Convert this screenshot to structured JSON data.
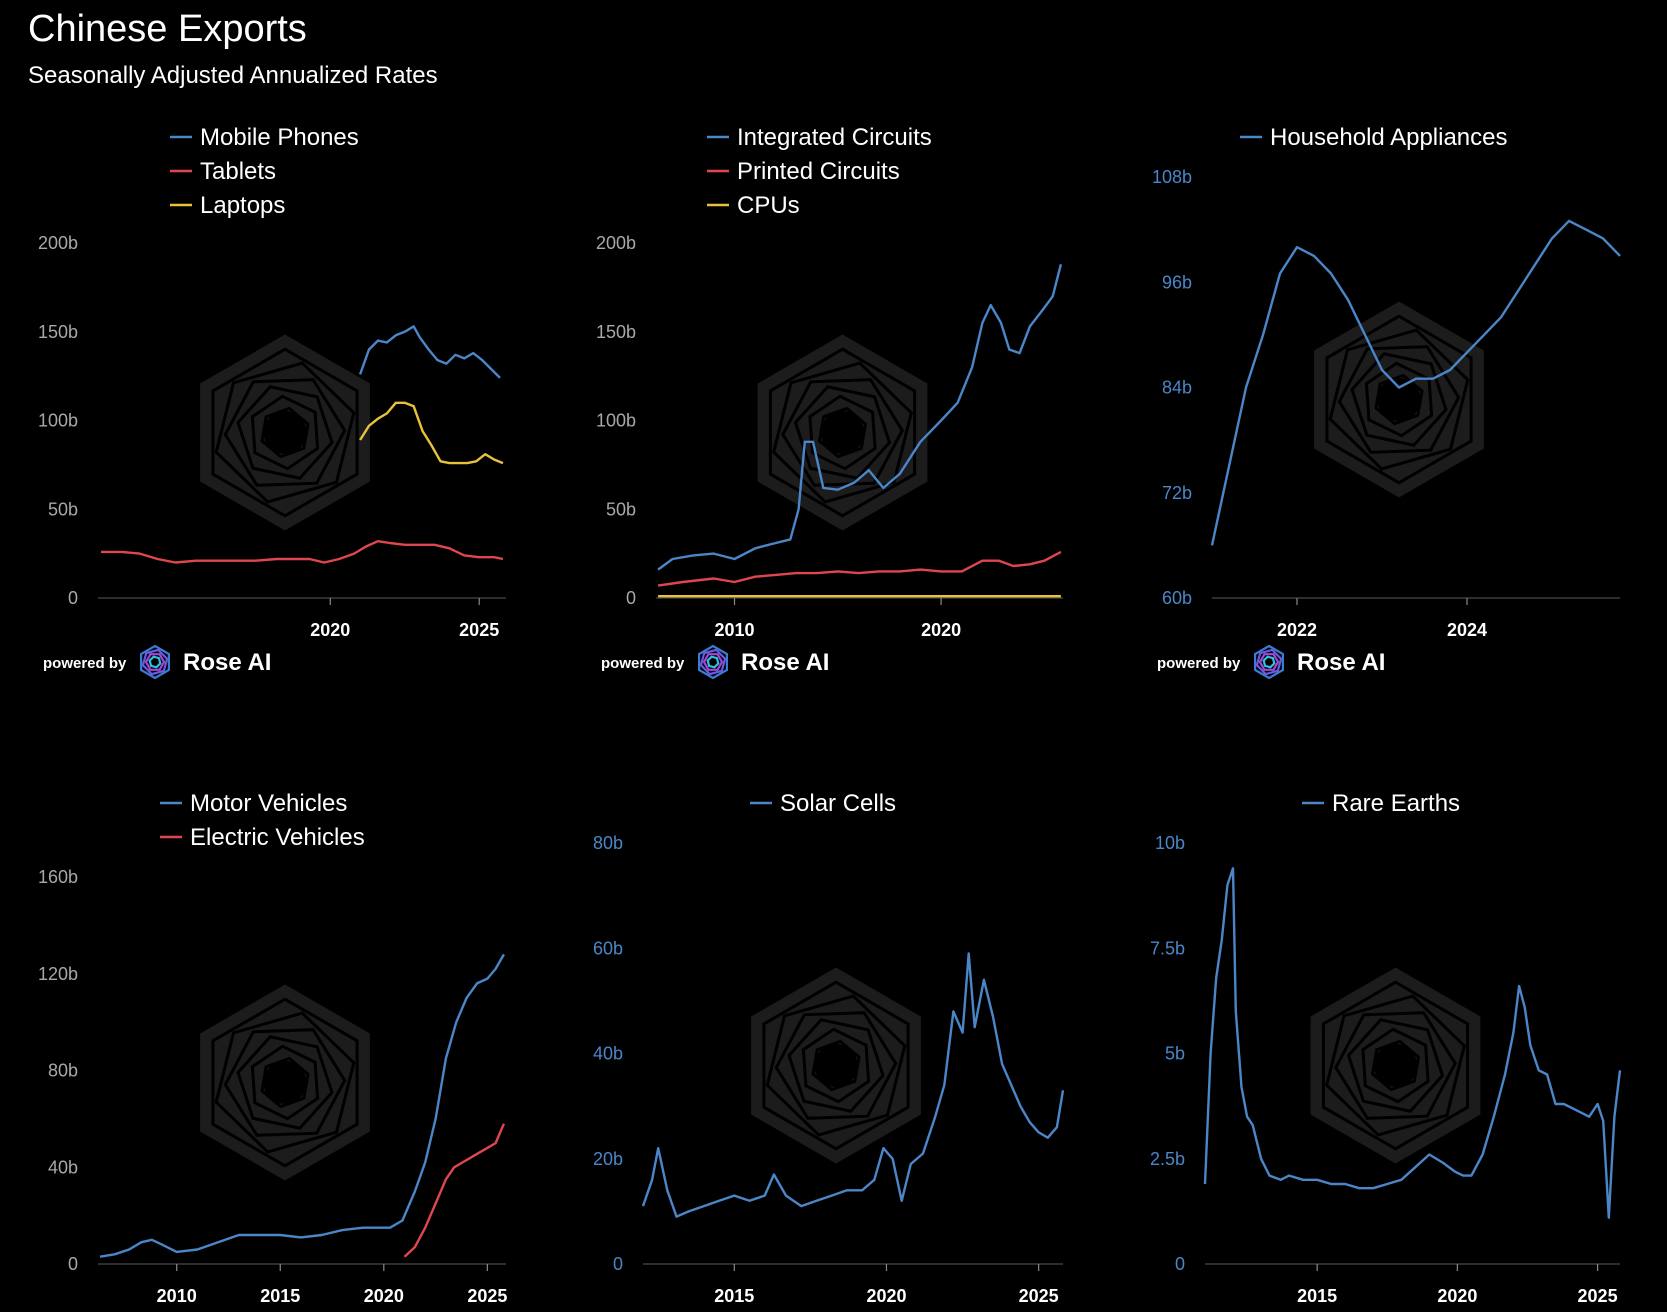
{
  "title": "Chinese Exports",
  "subtitle": "Seasonally Adjusted Annualized Rates",
  "colors": {
    "blue": "#4a86c8",
    "red": "#e0464e",
    "yellow": "#e8c23c",
    "background": "#000000",
    "tick": "#a8a8a8"
  },
  "branding": {
    "prefix": "powered by",
    "name": "Rose AI"
  },
  "chart_data": [
    {
      "type": "line",
      "ylim": [
        0,
        200
      ],
      "yticks": [
        0,
        50,
        100,
        150,
        200
      ],
      "ytick_labels": [
        "0",
        "50b",
        "100b",
        "150b",
        "200b"
      ],
      "xlim": [
        2012.2,
        2025.9
      ],
      "xticks": [
        2020,
        2025
      ],
      "xtick_labels": [
        "2020",
        "2025"
      ],
      "legend": "top-center",
      "ytick_color": "grey",
      "series": [
        {
          "name": "Mobile Phones",
          "color": "#4a86c8",
          "x": [
            2021.0,
            2021.3,
            2021.6,
            2021.9,
            2022.2,
            2022.5,
            2022.8,
            2023.0,
            2023.3,
            2023.6,
            2023.9,
            2024.2,
            2024.5,
            2024.8,
            2025.1,
            2025.4,
            2025.7
          ],
          "y": [
            126,
            140,
            145,
            144,
            148,
            150,
            153,
            147,
            140,
            134,
            132,
            137,
            135,
            138,
            134,
            129,
            124
          ]
        },
        {
          "name": "Tablets",
          "color": "#e0464e",
          "x": [
            2012.3,
            2013.0,
            2013.6,
            2014.2,
            2014.8,
            2015.5,
            2016.2,
            2016.8,
            2017.5,
            2018.2,
            2018.8,
            2019.3,
            2019.8,
            2020.3,
            2020.8,
            2021.2,
            2021.6,
            2022.0,
            2022.5,
            2023.0,
            2023.5,
            2024.0,
            2024.5,
            2025.0,
            2025.5,
            2025.8
          ],
          "y": [
            26,
            26,
            25,
            22,
            20,
            21,
            21,
            21,
            21,
            22,
            22,
            22,
            20,
            22,
            25,
            29,
            32,
            31,
            30,
            30,
            30,
            28,
            24,
            23,
            23,
            22
          ]
        },
        {
          "name": "Laptops",
          "color": "#e8c23c",
          "x": [
            2021.0,
            2021.3,
            2021.6,
            2021.9,
            2022.2,
            2022.5,
            2022.8,
            2023.1,
            2023.4,
            2023.7,
            2024.0,
            2024.3,
            2024.6,
            2024.9,
            2025.2,
            2025.5,
            2025.8
          ],
          "y": [
            89,
            97,
            101,
            104,
            110,
            110,
            108,
            94,
            86,
            77,
            76,
            76,
            76,
            77,
            81,
            78,
            76
          ]
        }
      ]
    },
    {
      "type": "line",
      "ylim": [
        0,
        200
      ],
      "yticks": [
        0,
        50,
        100,
        150,
        200
      ],
      "ytick_labels": [
        "0",
        "50b",
        "100b",
        "150b",
        "200b"
      ],
      "xlim": [
        2006.2,
        2025.9
      ],
      "xticks": [
        2010,
        2020
      ],
      "xtick_labels": [
        "2010",
        "2020"
      ],
      "legend": "top-center",
      "ytick_color": "grey",
      "series": [
        {
          "name": "Integrated Circuits",
          "color": "#4a86c8",
          "x": [
            2006.3,
            2007.0,
            2008.0,
            2009.0,
            2010.0,
            2011.0,
            2012.0,
            2012.7,
            2013.1,
            2013.4,
            2013.8,
            2014.3,
            2015.0,
            2015.8,
            2016.5,
            2017.2,
            2018.0,
            2019.0,
            2020.0,
            2020.8,
            2021.5,
            2022.0,
            2022.4,
            2022.9,
            2023.3,
            2023.8,
            2024.3,
            2024.9,
            2025.4,
            2025.8
          ],
          "y": [
            16,
            22,
            24,
            25,
            22,
            28,
            31,
            33,
            50,
            88,
            88,
            62,
            61,
            65,
            72,
            62,
            70,
            88,
            100,
            110,
            130,
            155,
            165,
            155,
            140,
            138,
            153,
            162,
            170,
            188
          ]
        },
        {
          "name": "Printed Circuits",
          "color": "#e0464e",
          "x": [
            2006.3,
            2007.5,
            2009.0,
            2010.0,
            2011.0,
            2012.0,
            2013.0,
            2014.0,
            2015.0,
            2016.0,
            2017.0,
            2018.0,
            2019.0,
            2020.0,
            2021.0,
            2022.0,
            2022.8,
            2023.5,
            2024.3,
            2025.0,
            2025.8
          ],
          "y": [
            7,
            9,
            11,
            9,
            12,
            13,
            14,
            14,
            15,
            14,
            15,
            15,
            16,
            15,
            15,
            21,
            21,
            18,
            19,
            21,
            26
          ]
        },
        {
          "name": "CPUs",
          "color": "#e8c23c",
          "x": [
            2006.3,
            2010.0,
            2015.0,
            2020.0,
            2025.8
          ],
          "y": [
            1,
            1,
            1,
            1,
            1
          ]
        }
      ]
    },
    {
      "type": "line",
      "ylim": [
        60,
        108
      ],
      "yticks": [
        60,
        72,
        84,
        96,
        108
      ],
      "ytick_labels": [
        "60b",
        "72b",
        "84b",
        "96b",
        "108b"
      ],
      "xlim": [
        2021.0,
        2025.8
      ],
      "xticks": [
        2022,
        2024
      ],
      "xtick_labels": [
        "2022",
        "2024"
      ],
      "legend": "top-center",
      "ytick_color": "blue",
      "series": [
        {
          "name": "Household Appliances",
          "color": "#4a86c8",
          "x": [
            2021.0,
            2021.2,
            2021.4,
            2021.6,
            2021.8,
            2022.0,
            2022.2,
            2022.4,
            2022.6,
            2022.8,
            2023.0,
            2023.2,
            2023.4,
            2023.6,
            2023.8,
            2024.0,
            2024.2,
            2024.4,
            2024.6,
            2024.8,
            2025.0,
            2025.2,
            2025.4,
            2025.6,
            2025.8
          ],
          "y": [
            66,
            75,
            84,
            90,
            97,
            100,
            99,
            97,
            94,
            90,
            86,
            84,
            85,
            85,
            86,
            88,
            90,
            92,
            95,
            98,
            101,
            103,
            102,
            101,
            99
          ]
        }
      ]
    },
    {
      "type": "line",
      "ylim": [
        0,
        160
      ],
      "yticks": [
        0,
        40,
        80,
        120,
        160
      ],
      "ytick_labels": [
        "0",
        "40b",
        "80b",
        "120b",
        "160b"
      ],
      "xlim": [
        2006.2,
        2025.9
      ],
      "xticks": [
        2010,
        2015,
        2020,
        2025
      ],
      "xtick_labels": [
        "2010",
        "2015",
        "2020",
        "2025"
      ],
      "legend": "top-center",
      "ytick_color": "grey",
      "series": [
        {
          "name": "Motor Vehicles",
          "color": "#4a86c8",
          "x": [
            2006.3,
            2007.0,
            2007.7,
            2008.3,
            2008.8,
            2009.3,
            2010.0,
            2011.0,
            2012.0,
            2013.0,
            2014.0,
            2015.0,
            2016.0,
            2017.0,
            2018.0,
            2019.0,
            2019.8,
            2020.3,
            2020.9,
            2021.5,
            2022.0,
            2022.5,
            2023.0,
            2023.5,
            2024.0,
            2024.5,
            2025.0,
            2025.4,
            2025.8
          ],
          "y": [
            3,
            4,
            6,
            9,
            10,
            8,
            5,
            6,
            9,
            12,
            12,
            12,
            11,
            12,
            14,
            15,
            15,
            15,
            18,
            30,
            42,
            60,
            85,
            100,
            110,
            116,
            118,
            122,
            128
          ]
        },
        {
          "name": "Electric Vehicles",
          "color": "#e0464e",
          "x": [
            2021.0,
            2021.5,
            2022.0,
            2022.5,
            2023.0,
            2023.4,
            2023.8,
            2024.2,
            2024.6,
            2025.0,
            2025.4,
            2025.8
          ],
          "y": [
            3,
            7,
            15,
            25,
            35,
            40,
            42,
            44,
            46,
            48,
            50,
            58
          ]
        }
      ]
    },
    {
      "type": "line",
      "ylim": [
        0,
        80
      ],
      "yticks": [
        0,
        20,
        40,
        60,
        80
      ],
      "ytick_labels": [
        "0",
        "20b",
        "40b",
        "60b",
        "80b"
      ],
      "xlim": [
        2012.0,
        2025.8
      ],
      "xticks": [
        2015,
        2020,
        2025
      ],
      "xtick_labels": [
        "2015",
        "2020",
        "2025"
      ],
      "legend": "top-center",
      "ytick_color": "blue",
      "series": [
        {
          "name": "Solar Cells",
          "color": "#4a86c8",
          "x": [
            2012.0,
            2012.3,
            2012.5,
            2012.8,
            2013.1,
            2013.5,
            2014.0,
            2014.5,
            2015.0,
            2015.5,
            2016.0,
            2016.3,
            2016.7,
            2017.2,
            2017.7,
            2018.2,
            2018.7,
            2019.2,
            2019.6,
            2019.9,
            2020.2,
            2020.5,
            2020.8,
            2021.2,
            2021.6,
            2021.9,
            2022.2,
            2022.5,
            2022.7,
            2022.9,
            2023.2,
            2023.5,
            2023.8,
            2024.1,
            2024.4,
            2024.7,
            2025.0,
            2025.3,
            2025.6,
            2025.8
          ],
          "y": [
            11,
            16,
            22,
            14,
            9,
            10,
            11,
            12,
            13,
            12,
            13,
            17,
            13,
            11,
            12,
            13,
            14,
            14,
            16,
            22,
            20,
            12,
            19,
            21,
            28,
            34,
            48,
            44,
            59,
            45,
            54,
            47,
            38,
            34,
            30,
            27,
            25,
            24,
            26,
            33
          ]
        }
      ]
    },
    {
      "type": "line",
      "ylim": [
        0,
        10
      ],
      "yticks": [
        0,
        2.5,
        5,
        7.5,
        10
      ],
      "ytick_labels": [
        "0",
        "2.5b",
        "5b",
        "7.5b",
        "10b"
      ],
      "xlim": [
        2011.0,
        2025.8
      ],
      "xticks": [
        2015,
        2020,
        2025
      ],
      "xtick_labels": [
        "2015",
        "2020",
        "2025"
      ],
      "legend": "top-center",
      "ytick_color": "blue",
      "series": [
        {
          "name": "Rare Earths",
          "color": "#4a86c8",
          "x": [
            2011.0,
            2011.2,
            2011.4,
            2011.6,
            2011.8,
            2012.0,
            2012.1,
            2012.3,
            2012.5,
            2012.7,
            2013.0,
            2013.3,
            2013.7,
            2014.0,
            2014.5,
            2015.0,
            2015.5,
            2016.0,
            2016.5,
            2017.0,
            2017.5,
            2018.0,
            2018.5,
            2019.0,
            2019.5,
            2019.9,
            2020.2,
            2020.5,
            2020.9,
            2021.3,
            2021.7,
            2022.0,
            2022.2,
            2022.4,
            2022.6,
            2022.9,
            2023.2,
            2023.5,
            2023.8,
            2024.1,
            2024.4,
            2024.7,
            2025.0,
            2025.2,
            2025.4,
            2025.6,
            2025.8
          ],
          "y": [
            1.9,
            5.0,
            6.8,
            7.7,
            9.0,
            9.4,
            6.0,
            4.2,
            3.5,
            3.3,
            2.5,
            2.1,
            2.0,
            2.1,
            2.0,
            2.0,
            1.9,
            1.9,
            1.8,
            1.8,
            1.9,
            2.0,
            2.3,
            2.6,
            2.4,
            2.2,
            2.1,
            2.1,
            2.6,
            3.5,
            4.5,
            5.5,
            6.6,
            6.1,
            5.2,
            4.6,
            4.5,
            3.8,
            3.8,
            3.7,
            3.6,
            3.5,
            3.8,
            3.4,
            1.1,
            3.5,
            4.6
          ]
        }
      ]
    }
  ]
}
